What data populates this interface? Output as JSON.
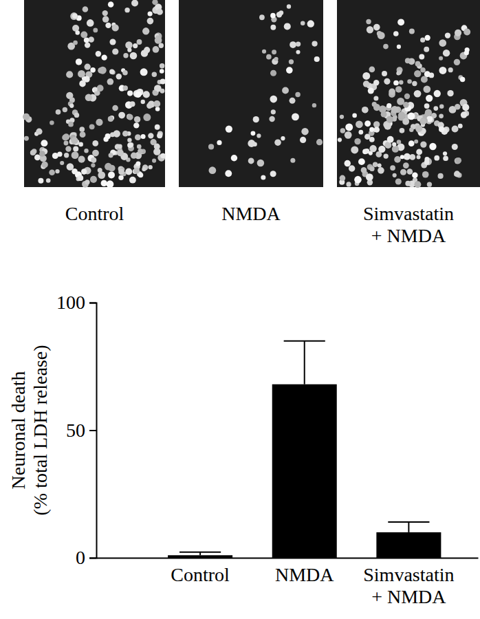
{
  "image_panels": {
    "labels": [
      "Control",
      "NMDA",
      "Simvastatin\n+ NMDA"
    ]
  },
  "chart_data": {
    "type": "bar",
    "y_label": "Neuronal death\n(% total LDH release)",
    "categories": [
      "Control",
      "NMDA",
      "Simvastatin\n+ NMDA"
    ],
    "values": [
      1,
      68,
      10
    ],
    "errors": [
      1.2,
      17,
      4
    ],
    "color": "#000000",
    "ylim": [
      0,
      100
    ],
    "yticks": [
      0,
      50,
      100
    ],
    "grid": false
  }
}
